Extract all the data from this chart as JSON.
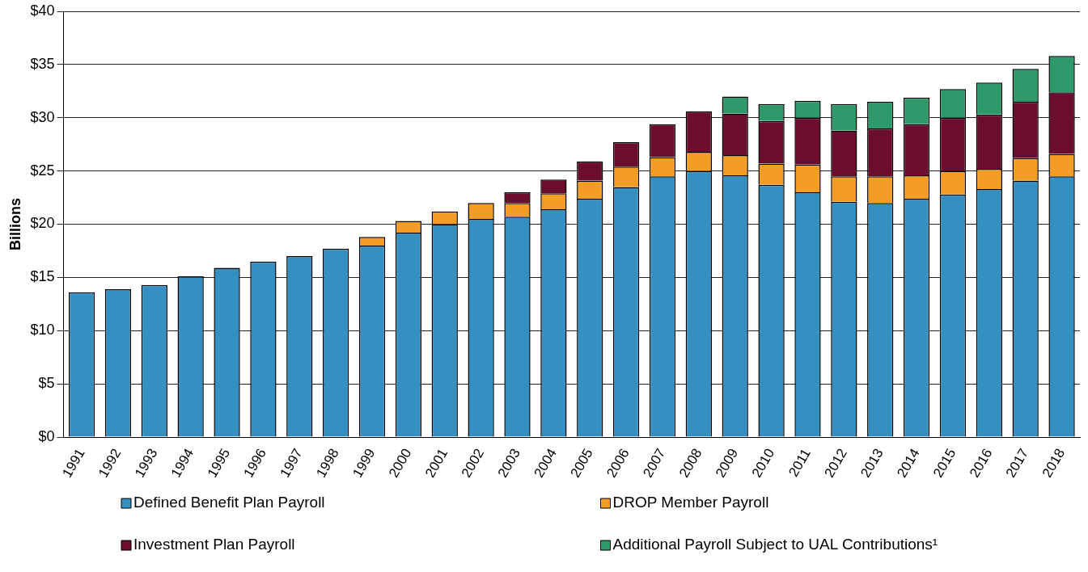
{
  "chart_data": {
    "type": "bar",
    "stacked": true,
    "ylabel": "Billions",
    "categories": [
      "1991",
      "1992",
      "1993",
      "1994",
      "1995",
      "1996",
      "1997",
      "1998",
      "1999",
      "2000",
      "2001",
      "2002",
      "2003",
      "2004",
      "2005",
      "2006",
      "2007",
      "2008",
      "2009",
      "2010",
      "2011",
      "2012",
      "2013",
      "2014",
      "2015",
      "2016",
      "2017",
      "2018"
    ],
    "series": [
      {
        "name": "Defined Benefit Plan Payroll",
        "color": "#3490c0",
        "values": [
          13.6,
          13.9,
          14.3,
          15.1,
          15.9,
          16.5,
          17.0,
          17.7,
          18.0,
          19.2,
          20.0,
          20.5,
          20.7,
          21.4,
          22.4,
          23.5,
          24.5,
          25.0,
          24.6,
          23.7,
          23.0,
          22.1,
          22.0,
          22.4,
          22.8,
          23.3,
          24.1,
          24.5
        ]
      },
      {
        "name": "DROP Member Payroll",
        "color": "#f39c26",
        "values": [
          null,
          null,
          null,
          null,
          null,
          null,
          null,
          null,
          0.8,
          1.1,
          1.2,
          1.5,
          1.3,
          1.5,
          1.7,
          1.9,
          1.8,
          1.8,
          1.9,
          2.0,
          2.6,
          2.4,
          2.5,
          2.2,
          2.2,
          1.9,
          2.1,
          2.1
        ]
      },
      {
        "name": "Investment Plan Payroll",
        "color": "#6b0d2e",
        "values": [
          null,
          null,
          null,
          null,
          null,
          null,
          null,
          null,
          null,
          null,
          null,
          null,
          1.0,
          1.3,
          1.8,
          2.3,
          3.1,
          3.8,
          3.9,
          4.0,
          4.4,
          4.3,
          4.5,
          4.8,
          5.0,
          5.1,
          5.3,
          5.8
        ]
      },
      {
        "name": "Additional Payroll Subject to UAL Contributions¹",
        "color": "#2e9a6c",
        "values": [
          null,
          null,
          null,
          null,
          null,
          null,
          null,
          null,
          null,
          null,
          null,
          null,
          null,
          null,
          null,
          null,
          null,
          null,
          1.6,
          1.6,
          1.6,
          2.5,
          2.5,
          2.5,
          2.7,
          3.0,
          3.1,
          3.4
        ]
      }
    ],
    "ylim": [
      0,
      40
    ],
    "yticks": [
      {
        "value": 0,
        "label": "$0"
      },
      {
        "value": 5,
        "label": "$5"
      },
      {
        "value": 10,
        "label": "$10"
      },
      {
        "value": 15,
        "label": "$15"
      },
      {
        "value": 20,
        "label": "$20"
      },
      {
        "value": 25,
        "label": "$25"
      },
      {
        "value": 30,
        "label": "$30"
      },
      {
        "value": 35,
        "label": "$35"
      },
      {
        "value": 40,
        "label": "$40"
      }
    ],
    "grid": "y",
    "legend": "bottom"
  }
}
